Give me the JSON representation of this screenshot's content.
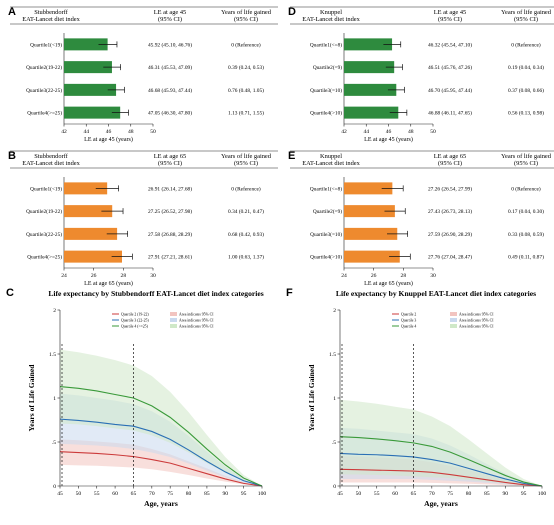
{
  "forest_panels": [
    {
      "letter": "A",
      "title_line1": "Stubbendorff",
      "title_line2": "EAT-Lancet diet index",
      "col1_line1": "LE at age 45",
      "col1_line2": "(95% CI)",
      "col2_line1": "Years of life gained",
      "col2_line2": "(95% CI)",
      "color": "#2e8b3e",
      "xticks": [
        "42",
        "44",
        "46",
        "48",
        "50"
      ],
      "xmin": 42,
      "xmax": 50,
      "xlabel": "LE at age 45 (years)",
      "rows": [
        {
          "label": "Quartile1(<19)",
          "value": 45.92,
          "lo": 45.1,
          "hi": 46.76,
          "le": "45.92 (45.10, 46.76)",
          "gain": "0 (Reference)"
        },
        {
          "label": "Quartile2(19-22)",
          "value": 46.31,
          "lo": 45.53,
          "hi": 47.09,
          "le": "46.31 (45.53, 47.09)",
          "gain": "0.39 (0.24, 0.53)"
        },
        {
          "label": "Quartile3(22-25)",
          "value": 46.68,
          "lo": 45.93,
          "hi": 47.44,
          "le": "46.68 (45.93, 47.44)",
          "gain": "0.76 (0.48, 1.05)"
        },
        {
          "label": "Quartile4(>=25)",
          "value": 47.05,
          "lo": 46.3,
          "hi": 47.8,
          "le": "47.05 (46.30, 47.80)",
          "gain": "1.13 (0.71, 1.55)"
        }
      ]
    },
    {
      "letter": "D",
      "title_line1": "Knuppel",
      "title_line2": "EAT-Lancet diet index",
      "col1_line1": "LE at age 45",
      "col1_line2": "(95% CI)",
      "col2_line1": "Years of life gained",
      "col2_line2": "(95% CI)",
      "color": "#2e8b3e",
      "xticks": [
        "42",
        "44",
        "46",
        "48",
        "50"
      ],
      "xmin": 42,
      "xmax": 50,
      "xlabel": "LE at age 45 (years)",
      "rows": [
        {
          "label": "Quartile1(<=8)",
          "value": 46.32,
          "lo": 45.54,
          "hi": 47.1,
          "le": "46.32 (45.54, 47.10)",
          "gain": "0 (Reference)"
        },
        {
          "label": "Quartile2(=9)",
          "value": 46.51,
          "lo": 45.76,
          "hi": 47.26,
          "le": "46.51 (45.76, 47.26)",
          "gain": "0.19 (0.04, 0.34)"
        },
        {
          "label": "Quartile3(=10)",
          "value": 46.7,
          "lo": 45.95,
          "hi": 47.44,
          "le": "46.70 (45.95, 47.44)",
          "gain": "0.37 (0.08, 0.66)"
        },
        {
          "label": "Quartile4(>10)",
          "value": 46.88,
          "lo": 46.11,
          "hi": 47.65,
          "le": "46.88 (46.11, 47.65)",
          "gain": "0.56 (0.13, 0.98)"
        }
      ]
    },
    {
      "letter": "B",
      "title_line1": "Stubbendorff",
      "title_line2": "EAT-Lancet diet index",
      "col1_line1": "LE at age 65",
      "col1_line2": "(95% CI)",
      "col2_line1": "Years of life gained",
      "col2_line2": "(95% CI)",
      "color": "#ee8a2e",
      "xticks": [
        "24",
        "26",
        "28",
        "30"
      ],
      "xmin": 24,
      "xmax": 30,
      "xlabel": "LE at age 65 (years)",
      "rows": [
        {
          "label": "Quartile1(<19)",
          "value": 26.91,
          "lo": 26.14,
          "hi": 27.68,
          "le": "26.91 (26.14, 27.68)",
          "gain": "0 (Reference)"
        },
        {
          "label": "Quartile2(19-22)",
          "value": 27.25,
          "lo": 26.52,
          "hi": 27.98,
          "le": "27.25 (26.52, 27.98)",
          "gain": "0.34 (0.21, 0.47)"
        },
        {
          "label": "Quartile3(22-25)",
          "value": 27.58,
          "lo": 26.88,
          "hi": 28.29,
          "le": "27.58 (26.88, 28.29)",
          "gain": "0.68 (0.42, 0.93)"
        },
        {
          "label": "Quartile4(>=25)",
          "value": 27.91,
          "lo": 27.21,
          "hi": 28.61,
          "le": "27.91 (27.21, 28.61)",
          "gain": "1.00 (0.63, 1.37)"
        }
      ]
    },
    {
      "letter": "E",
      "title_line1": "Knuppel",
      "title_line2": "EAT-Lancet diet index",
      "col1_line1": "LE at age 65",
      "col1_line2": "(95% CI)",
      "col2_line1": "Years of life gained",
      "col2_line2": "(95% CI)",
      "color": "#ee8a2e",
      "xticks": [
        "24",
        "26",
        "28",
        "30"
      ],
      "xmin": 24,
      "xmax": 30,
      "xlabel": "LE at age 65 (years)",
      "rows": [
        {
          "label": "Quartile1(<=8)",
          "value": 27.26,
          "lo": 26.54,
          "hi": 27.99,
          "le": "27.26 (26.54, 27.99)",
          "gain": "0 (Reference)"
        },
        {
          "label": "Quartile2(=9)",
          "value": 27.43,
          "lo": 26.73,
          "hi": 28.13,
          "le": "27.43 (26.73, 28.13)",
          "gain": "0.17 (0.04, 0.30)"
        },
        {
          "label": "Quartile3(=10)",
          "value": 27.59,
          "lo": 26.9,
          "hi": 28.29,
          "le": "27.59 (26.90, 28.29)",
          "gain": "0.33 (0.08, 0.59)"
        },
        {
          "label": "Quartile4(>10)",
          "value": 27.76,
          "lo": 27.04,
          "hi": 28.47,
          "le": "27.76 (27.04, 28.47)",
          "gain": "0.49 (0.11, 0.87)"
        }
      ]
    }
  ],
  "curve_panels": [
    {
      "letter": "C",
      "title": "Life expectancy by Stubbendorff EAT-Lancet diet index categories",
      "ylabel": "Years of Life Gained",
      "xlabel": "Age, years",
      "xticks": [
        "45",
        "50",
        "55",
        "60",
        "65",
        "70",
        "75",
        "80",
        "85",
        "90",
        "95",
        "100"
      ],
      "yticks": [
        "0",
        ".5",
        "1",
        "1.5",
        "2"
      ],
      "xmin": 45,
      "xmax": 100,
      "ymin": 0,
      "ymax": 2,
      "vlines": [
        45,
        65
      ],
      "legend_left": [
        "Quartile 2 (19-22)",
        "Quartile 3 (22-25)",
        "Quartile 4 (>=25)"
      ],
      "legend_right": [
        "Area indicates 95% CI",
        "Area indicates 95% CI",
        "Area indicates 95% CI"
      ],
      "series": [
        {
          "name": "Quartile 2 (19-22)",
          "color": "#cc3b3b",
          "fill": "#f2c4c0",
          "x": [
            45,
            50,
            55,
            60,
            65,
            70,
            75,
            80,
            85,
            90,
            95,
            100
          ],
          "y": [
            0.39,
            0.38,
            0.37,
            0.355,
            0.335,
            0.3,
            0.26,
            0.2,
            0.14,
            0.08,
            0.03,
            0.0
          ],
          "lo": [
            0.24,
            0.235,
            0.23,
            0.22,
            0.21,
            0.19,
            0.16,
            0.125,
            0.085,
            0.05,
            0.018,
            0.0
          ],
          "hi": [
            0.53,
            0.52,
            0.505,
            0.49,
            0.47,
            0.42,
            0.36,
            0.28,
            0.2,
            0.115,
            0.045,
            0.0
          ]
        },
        {
          "name": "Quartile 3 (22-25)",
          "color": "#2a6fb5",
          "fill": "#c9d9ef",
          "x": [
            45,
            50,
            55,
            60,
            65,
            70,
            75,
            80,
            85,
            90,
            95,
            100
          ],
          "y": [
            0.76,
            0.745,
            0.725,
            0.7,
            0.68,
            0.62,
            0.53,
            0.41,
            0.28,
            0.16,
            0.06,
            0.0
          ],
          "lo": [
            0.48,
            0.47,
            0.46,
            0.445,
            0.42,
            0.38,
            0.33,
            0.255,
            0.175,
            0.1,
            0.035,
            0.0
          ],
          "hi": [
            1.05,
            1.03,
            1.0,
            0.97,
            0.93,
            0.85,
            0.73,
            0.57,
            0.39,
            0.22,
            0.085,
            0.0
          ]
        },
        {
          "name": "Quartile 4 (>=25)",
          "color": "#3a9a3a",
          "fill": "#cfe8c8",
          "x": [
            45,
            50,
            55,
            60,
            65,
            70,
            75,
            80,
            85,
            90,
            95,
            100
          ],
          "y": [
            1.13,
            1.11,
            1.08,
            1.04,
            1.0,
            0.91,
            0.78,
            0.61,
            0.42,
            0.24,
            0.09,
            0.0
          ],
          "lo": [
            0.71,
            0.7,
            0.68,
            0.655,
            0.63,
            0.575,
            0.49,
            0.38,
            0.26,
            0.15,
            0.055,
            0.0
          ],
          "hi": [
            1.55,
            1.52,
            1.48,
            1.43,
            1.37,
            1.25,
            1.07,
            0.84,
            0.58,
            0.33,
            0.125,
            0.0
          ]
        }
      ]
    },
    {
      "letter": "F",
      "title": "Life expectancy by Knuppel EAT-Lancet diet index categories",
      "ylabel": "Years of Life Gained",
      "xlabel": "Age, years",
      "xticks": [
        "45",
        "50",
        "55",
        "60",
        "65",
        "70",
        "75",
        "80",
        "85",
        "90",
        "95",
        "100"
      ],
      "yticks": [
        "0",
        ".5",
        "1",
        "1.5",
        "2"
      ],
      "xmin": 45,
      "xmax": 100,
      "ymin": 0,
      "ymax": 2,
      "vlines": [
        45,
        65
      ],
      "legend_left": [
        "Quartile 2",
        "Quartile 3",
        "Quartile 4"
      ],
      "legend_right": [
        "Area indicates 95% CI",
        "Area indicates 95% CI",
        "Area indicates 95% CI"
      ],
      "series": [
        {
          "name": "Quartile 2",
          "color": "#cc3b3b",
          "fill": "#f2c4c0",
          "x": [
            45,
            50,
            55,
            60,
            65,
            70,
            75,
            80,
            85,
            90,
            95,
            100
          ],
          "y": [
            0.19,
            0.185,
            0.18,
            0.175,
            0.17,
            0.155,
            0.13,
            0.1,
            0.07,
            0.04,
            0.015,
            0.0
          ],
          "lo": [
            0.04,
            0.04,
            0.04,
            0.04,
            0.04,
            0.035,
            0.03,
            0.025,
            0.018,
            0.01,
            0.004,
            0.0
          ],
          "hi": [
            0.34,
            0.335,
            0.325,
            0.315,
            0.3,
            0.27,
            0.23,
            0.18,
            0.125,
            0.07,
            0.027,
            0.0
          ]
        },
        {
          "name": "Quartile 3",
          "color": "#2a6fb5",
          "fill": "#c9d9ef",
          "x": [
            45,
            50,
            55,
            60,
            65,
            70,
            75,
            80,
            85,
            90,
            95,
            100
          ],
          "y": [
            0.37,
            0.36,
            0.355,
            0.345,
            0.33,
            0.3,
            0.26,
            0.2,
            0.14,
            0.08,
            0.03,
            0.0
          ],
          "lo": [
            0.08,
            0.08,
            0.08,
            0.08,
            0.08,
            0.07,
            0.06,
            0.05,
            0.035,
            0.02,
            0.008,
            0.0
          ],
          "hi": [
            0.66,
            0.65,
            0.63,
            0.61,
            0.59,
            0.54,
            0.46,
            0.36,
            0.25,
            0.14,
            0.055,
            0.0
          ]
        },
        {
          "name": "Quartile 4",
          "color": "#3a9a3a",
          "fill": "#cfe8c8",
          "x": [
            45,
            50,
            55,
            60,
            65,
            70,
            75,
            80,
            85,
            90,
            95,
            100
          ],
          "y": [
            0.56,
            0.55,
            0.535,
            0.515,
            0.49,
            0.45,
            0.385,
            0.3,
            0.21,
            0.12,
            0.045,
            0.0
          ],
          "lo": [
            0.13,
            0.13,
            0.125,
            0.12,
            0.11,
            0.1,
            0.09,
            0.07,
            0.05,
            0.03,
            0.01,
            0.0
          ],
          "hi": [
            0.98,
            0.96,
            0.935,
            0.9,
            0.87,
            0.79,
            0.68,
            0.53,
            0.37,
            0.21,
            0.08,
            0.0
          ]
        }
      ]
    }
  ],
  "chart_data": [
    {
      "type": "bar",
      "panel": "A",
      "categories": [
        "Quartile1(<19)",
        "Quartile2(19-22)",
        "Quartile3(22-25)",
        "Quartile4(>=25)"
      ],
      "values": [
        45.92,
        46.31,
        46.68,
        47.05
      ],
      "xlabel": "LE at age 45 (years)",
      "xlim": [
        42,
        50
      ]
    },
    {
      "type": "bar",
      "panel": "D",
      "categories": [
        "Quartile1(<=8)",
        "Quartile2(=9)",
        "Quartile3(=10)",
        "Quartile4(>10)"
      ],
      "values": [
        46.32,
        46.51,
        46.7,
        46.88
      ],
      "xlabel": "LE at age 45 (years)",
      "xlim": [
        42,
        50
      ]
    },
    {
      "type": "bar",
      "panel": "B",
      "categories": [
        "Quartile1(<19)",
        "Quartile2(19-22)",
        "Quartile3(22-25)",
        "Quartile4(>=25)"
      ],
      "values": [
        26.91,
        27.25,
        27.58,
        27.91
      ],
      "xlabel": "LE at age 65 (years)",
      "xlim": [
        24,
        30
      ]
    },
    {
      "type": "bar",
      "panel": "E",
      "categories": [
        "Quartile1(<=8)",
        "Quartile2(=9)",
        "Quartile3(=10)",
        "Quartile4(>10)"
      ],
      "values": [
        27.26,
        27.43,
        27.59,
        27.76
      ],
      "xlabel": "LE at age 65 (years)",
      "xlim": [
        24,
        30
      ]
    },
    {
      "type": "area",
      "panel": "C",
      "title": "Life expectancy by Stubbendorff EAT-Lancet diet index categories",
      "xlabel": "Age, years",
      "ylabel": "Years of Life Gained",
      "xlim": [
        45,
        100
      ],
      "ylim": [
        0,
        2
      ]
    },
    {
      "type": "area",
      "panel": "F",
      "title": "Life expectancy by Knuppel EAT-Lancet diet index categories",
      "xlabel": "Age, years",
      "ylabel": "Years of Life Gained",
      "xlim": [
        45,
        100
      ],
      "ylim": [
        0,
        2
      ]
    }
  ]
}
